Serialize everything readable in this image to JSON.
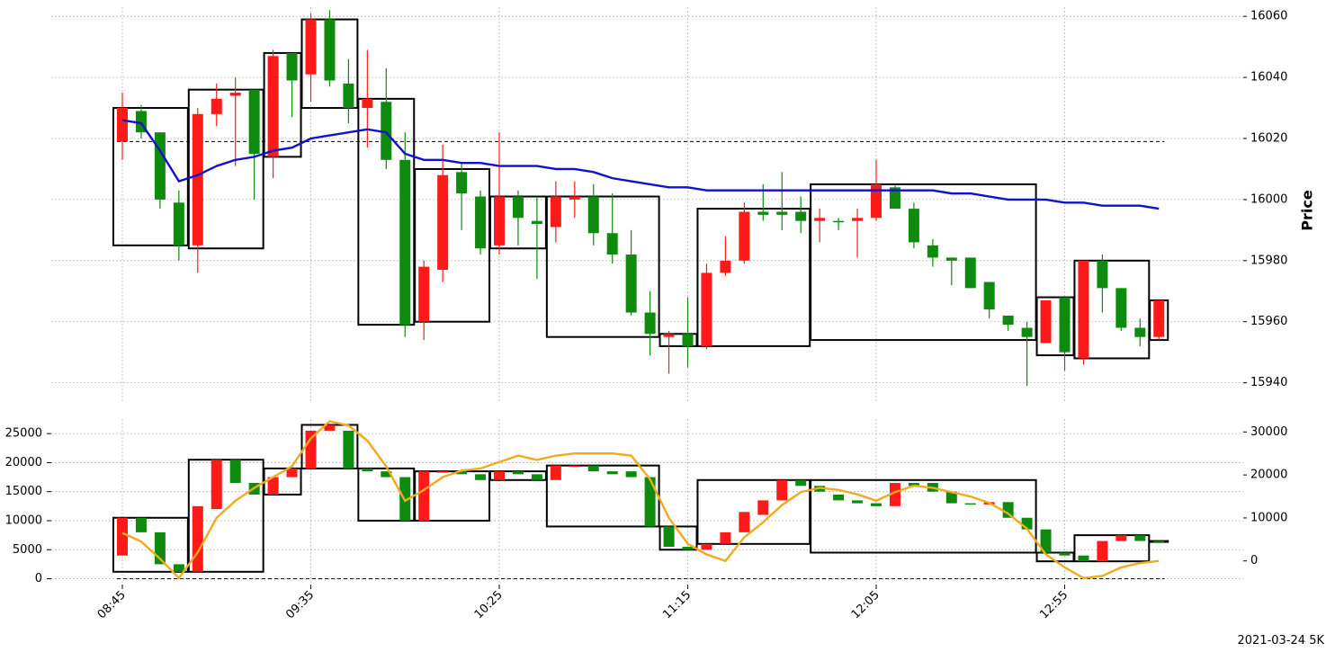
{
  "chart_data": {
    "type": "candlestick",
    "footer": "2021-03-24 5K",
    "price_axis": {
      "label": "Price",
      "ticks": [
        15940,
        15960,
        15980,
        16000,
        16020,
        16040,
        16060
      ],
      "range": [
        15934,
        16063
      ]
    },
    "volume_axis_left": {
      "ticks": [
        0,
        5000,
        10000,
        15000,
        20000,
        25000
      ],
      "range": [
        -1000,
        27500
      ]
    },
    "volume_axis_right": {
      "ticks": [
        0,
        10000,
        20000,
        30000
      ],
      "range": [
        -5500,
        33000
      ]
    },
    "x_ticks": [
      "08:45",
      "09:35",
      "10:25",
      "11:15",
      "12:05",
      "12:55"
    ],
    "x_tick_indices": [
      0,
      10,
      20,
      30,
      40,
      50
    ],
    "colors": {
      "up": "#ff1a1a",
      "down": "#0e8a0e",
      "ma": "#1010d0",
      "vol_line": "#f0aa1e",
      "box": "#000000"
    },
    "price_reference_line": 16019,
    "candles": [
      {
        "o": 16019,
        "h": 16035,
        "l": 16013,
        "c": 16030,
        "dir": "up"
      },
      {
        "o": 16029,
        "h": 16031,
        "l": 16020,
        "c": 16022,
        "dir": "down"
      },
      {
        "o": 16022,
        "h": 16022,
        "l": 15997,
        "c": 16000,
        "dir": "down"
      },
      {
        "o": 15999,
        "h": 16003,
        "l": 15980,
        "c": 15985,
        "dir": "down"
      },
      {
        "o": 15985,
        "h": 16030,
        "l": 15976,
        "c": 16028,
        "dir": "up"
      },
      {
        "o": 16028,
        "h": 16038,
        "l": 16024,
        "c": 16033,
        "dir": "up"
      },
      {
        "o": 16034,
        "h": 16040,
        "l": 16011,
        "c": 16035,
        "dir": "up"
      },
      {
        "o": 16036,
        "h": 16036,
        "l": 16000,
        "c": 16015,
        "dir": "down"
      },
      {
        "o": 16014,
        "h": 16049,
        "l": 16007,
        "c": 16047,
        "dir": "up"
      },
      {
        "o": 16048,
        "h": 16048,
        "l": 16027,
        "c": 16039,
        "dir": "down"
      },
      {
        "o": 16041,
        "h": 16061,
        "l": 16032,
        "c": 16059,
        "dir": "up"
      },
      {
        "o": 16059,
        "h": 16062,
        "l": 16037,
        "c": 16039,
        "dir": "down"
      },
      {
        "o": 16038,
        "h": 16046,
        "l": 16025,
        "c": 16030,
        "dir": "down"
      },
      {
        "o": 16030,
        "h": 16049,
        "l": 16017,
        "c": 16033,
        "dir": "up"
      },
      {
        "o": 16032,
        "h": 16043,
        "l": 16010,
        "c": 16013,
        "dir": "down"
      },
      {
        "o": 16013,
        "h": 16022,
        "l": 15955,
        "c": 15959,
        "dir": "down"
      },
      {
        "o": 15960,
        "h": 15980,
        "l": 15954,
        "c": 15978,
        "dir": "up"
      },
      {
        "o": 15977,
        "h": 16018,
        "l": 15973,
        "c": 16008,
        "dir": "up"
      },
      {
        "o": 16009,
        "h": 16012,
        "l": 15990,
        "c": 16002,
        "dir": "down"
      },
      {
        "o": 16001,
        "h": 16003,
        "l": 15982,
        "c": 15984,
        "dir": "down"
      },
      {
        "o": 15985,
        "h": 16022,
        "l": 15982,
        "c": 16001,
        "dir": "up"
      },
      {
        "o": 16001,
        "h": 16003,
        "l": 15985,
        "c": 15994,
        "dir": "down"
      },
      {
        "o": 15993,
        "h": 16001,
        "l": 15974,
        "c": 15992,
        "dir": "down"
      },
      {
        "o": 15991,
        "h": 16006,
        "l": 15986,
        "c": 16001,
        "dir": "up"
      },
      {
        "o": 16000,
        "h": 16006,
        "l": 15994,
        "c": 16001,
        "dir": "up"
      },
      {
        "o": 16001,
        "h": 16005,
        "l": 15985,
        "c": 15989,
        "dir": "down"
      },
      {
        "o": 15989,
        "h": 16002,
        "l": 15979,
        "c": 15982,
        "dir": "down"
      },
      {
        "o": 15982,
        "h": 15990,
        "l": 15962,
        "c": 15963,
        "dir": "down"
      },
      {
        "o": 15963,
        "h": 15970,
        "l": 15949,
        "c": 15956,
        "dir": "down"
      },
      {
        "o": 15955,
        "h": 15957,
        "l": 15943,
        "c": 15956,
        "dir": "up"
      },
      {
        "o": 15956,
        "h": 15968,
        "l": 15945,
        "c": 15952,
        "dir": "down"
      },
      {
        "o": 15952,
        "h": 15979,
        "l": 15951,
        "c": 15976,
        "dir": "up"
      },
      {
        "o": 15976,
        "h": 15988,
        "l": 15975,
        "c": 15980,
        "dir": "up"
      },
      {
        "o": 15980,
        "h": 15999,
        "l": 15979,
        "c": 15996,
        "dir": "up"
      },
      {
        "o": 15996,
        "h": 16005,
        "l": 15993,
        "c": 15995,
        "dir": "down"
      },
      {
        "o": 15996,
        "h": 16009,
        "l": 15990,
        "c": 15995,
        "dir": "down"
      },
      {
        "o": 15996,
        "h": 16001,
        "l": 15989,
        "c": 15993,
        "dir": "down"
      },
      {
        "o": 15993,
        "h": 15997,
        "l": 15986,
        "c": 15994,
        "dir": "up"
      },
      {
        "o": 15993,
        "h": 15994,
        "l": 15990,
        "c": 15993,
        "dir": "down"
      },
      {
        "o": 15993,
        "h": 15997,
        "l": 15981,
        "c": 15994,
        "dir": "up"
      },
      {
        "o": 15994,
        "h": 16013,
        "l": 15993,
        "c": 16005,
        "dir": "up"
      },
      {
        "o": 16004,
        "h": 16005,
        "l": 15997,
        "c": 15997,
        "dir": "down"
      },
      {
        "o": 15997,
        "h": 15999,
        "l": 15984,
        "c": 15986,
        "dir": "down"
      },
      {
        "o": 15985,
        "h": 15987,
        "l": 15978,
        "c": 15981,
        "dir": "down"
      },
      {
        "o": 15981,
        "h": 15981,
        "l": 15972,
        "c": 15980,
        "dir": "down"
      },
      {
        "o": 15981,
        "h": 15981,
        "l": 15971,
        "c": 15971,
        "dir": "down"
      },
      {
        "o": 15973,
        "h": 15973,
        "l": 15961,
        "c": 15964,
        "dir": "down"
      },
      {
        "o": 15962,
        "h": 15962,
        "l": 15957,
        "c": 15959,
        "dir": "down"
      },
      {
        "o": 15958,
        "h": 15960,
        "l": 15939,
        "c": 15955,
        "dir": "down"
      },
      {
        "o": 15953,
        "h": 15967,
        "l": 15953,
        "c": 15967,
        "dir": "up"
      },
      {
        "o": 15968,
        "h": 15968,
        "l": 15944,
        "c": 15950,
        "dir": "down"
      },
      {
        "o": 15948,
        "h": 15980,
        "l": 15946,
        "c": 15980,
        "dir": "up"
      },
      {
        "o": 15980,
        "h": 15982,
        "l": 15963,
        "c": 15971,
        "dir": "down"
      },
      {
        "o": 15971,
        "h": 15971,
        "l": 15957,
        "c": 15958,
        "dir": "down"
      },
      {
        "o": 15958,
        "h": 15961,
        "l": 15952,
        "c": 15955,
        "dir": "down"
      },
      {
        "o": 15955,
        "h": 15967,
        "l": 15954,
        "c": 15967,
        "dir": "up"
      }
    ],
    "ma_line": [
      16026,
      16025,
      16016,
      16006,
      16008,
      16011,
      16013,
      16014,
      16016,
      16017,
      16020,
      16021,
      16022,
      16023,
      16022,
      16015,
      16013,
      16013,
      16012,
      16012,
      16011,
      16011,
      16011,
      16010,
      16010,
      16009,
      16007,
      16006,
      16005,
      16004,
      16004,
      16003,
      16003,
      16003,
      16003,
      16003,
      16003,
      16003,
      16003,
      16003,
      16003,
      16003,
      16003,
      16003,
      16002,
      16002,
      16001,
      16000,
      16000,
      16000,
      15999,
      15999,
      15998,
      15998,
      15998,
      15997
    ],
    "price_boxes": [
      {
        "i0": 0,
        "i1": 3,
        "top": 16030,
        "bottom": 15985
      },
      {
        "i0": 4,
        "i1": 7,
        "top": 16036,
        "bottom": 15984
      },
      {
        "i0": 8,
        "i1": 9,
        "top": 16048,
        "bottom": 16014
      },
      {
        "i0": 10,
        "i1": 12,
        "top": 16059,
        "bottom": 16030
      },
      {
        "i0": 13,
        "i1": 15,
        "top": 16033,
        "bottom": 15959
      },
      {
        "i0": 16,
        "i1": 19,
        "top": 16010,
        "bottom": 15960
      },
      {
        "i0": 20,
        "i1": 22,
        "top": 16001,
        "bottom": 15984
      },
      {
        "i0": 23,
        "i1": 28,
        "top": 16001,
        "bottom": 15955
      },
      {
        "i0": 29,
        "i1": 30,
        "top": 15956,
        "bottom": 15952
      },
      {
        "i0": 31,
        "i1": 36,
        "top": 15997,
        "bottom": 15952
      },
      {
        "i0": 37,
        "i1": 48,
        "top": 16005,
        "bottom": 15954
      },
      {
        "i0": 49,
        "i1": 50,
        "top": 15968,
        "bottom": 15949
      },
      {
        "i0": 51,
        "i1": 54,
        "top": 15980,
        "bottom": 15948
      },
      {
        "i0": 55,
        "i1": 55,
        "top": 15967,
        "bottom": 15954
      }
    ],
    "volume_candles": [
      {
        "o": 4000,
        "c": 10500,
        "dir": "up"
      },
      {
        "o": 10500,
        "c": 8000,
        "dir": "down"
      },
      {
        "o": 8000,
        "c": 2500,
        "dir": "down"
      },
      {
        "o": 2500,
        "c": 1200,
        "dir": "down"
      },
      {
        "o": 1200,
        "c": 12500,
        "dir": "up"
      },
      {
        "o": 12000,
        "c": 20500,
        "dir": "up"
      },
      {
        "o": 20500,
        "c": 16500,
        "dir": "down"
      },
      {
        "o": 16500,
        "c": 14500,
        "dir": "down"
      },
      {
        "o": 14500,
        "c": 17500,
        "dir": "up"
      },
      {
        "o": 17500,
        "c": 19000,
        "dir": "up"
      },
      {
        "o": 19000,
        "c": 25500,
        "dir": "up"
      },
      {
        "o": 25500,
        "c": 26500,
        "dir": "up"
      },
      {
        "o": 25500,
        "c": 19000,
        "dir": "down"
      },
      {
        "o": 19000,
        "c": 18500,
        "dir": "down"
      },
      {
        "o": 18500,
        "c": 17500,
        "dir": "down"
      },
      {
        "o": 17500,
        "c": 10000,
        "dir": "down"
      },
      {
        "o": 10000,
        "c": 18500,
        "dir": "up"
      },
      {
        "o": 18500,
        "c": 18500,
        "dir": "up"
      },
      {
        "o": 18500,
        "c": 18000,
        "dir": "down"
      },
      {
        "o": 18000,
        "c": 17000,
        "dir": "down"
      },
      {
        "o": 17000,
        "c": 18500,
        "dir": "up"
      },
      {
        "o": 18500,
        "c": 18000,
        "dir": "down"
      },
      {
        "o": 18000,
        "c": 17000,
        "dir": "down"
      },
      {
        "o": 17000,
        "c": 19500,
        "dir": "up"
      },
      {
        "o": 19500,
        "c": 19500,
        "dir": "up"
      },
      {
        "o": 19500,
        "c": 18500,
        "dir": "down"
      },
      {
        "o": 18500,
        "c": 18000,
        "dir": "down"
      },
      {
        "o": 18500,
        "c": 17500,
        "dir": "down"
      },
      {
        "o": 17500,
        "c": 9000,
        "dir": "down"
      },
      {
        "o": 9000,
        "c": 5500,
        "dir": "down"
      },
      {
        "o": 5500,
        "c": 5000,
        "dir": "down"
      },
      {
        "o": 5000,
        "c": 6000,
        "dir": "up"
      },
      {
        "o": 6000,
        "c": 8000,
        "dir": "up"
      },
      {
        "o": 8000,
        "c": 11500,
        "dir": "up"
      },
      {
        "o": 11000,
        "c": 13500,
        "dir": "up"
      },
      {
        "o": 13500,
        "c": 17000,
        "dir": "up"
      },
      {
        "o": 17000,
        "c": 16000,
        "dir": "down"
      },
      {
        "o": 16000,
        "c": 15000,
        "dir": "down"
      },
      {
        "o": 14500,
        "c": 13500,
        "dir": "down"
      },
      {
        "o": 13500,
        "c": 13000,
        "dir": "down"
      },
      {
        "o": 13000,
        "c": 12500,
        "dir": "down"
      },
      {
        "o": 12500,
        "c": 16500,
        "dir": "up"
      },
      {
        "o": 16500,
        "c": 16000,
        "dir": "down"
      },
      {
        "o": 16500,
        "c": 15000,
        "dir": "down"
      },
      {
        "o": 15000,
        "c": 13000,
        "dir": "down"
      },
      {
        "o": 13000,
        "c": 12800,
        "dir": "down"
      },
      {
        "o": 12800,
        "c": 13200,
        "dir": "up"
      },
      {
        "o": 13200,
        "c": 10500,
        "dir": "down"
      },
      {
        "o": 10500,
        "c": 8500,
        "dir": "down"
      },
      {
        "o": 8500,
        "c": 4500,
        "dir": "down"
      },
      {
        "o": 4500,
        "c": 4000,
        "dir": "down"
      },
      {
        "o": 4000,
        "c": 3000,
        "dir": "down"
      },
      {
        "o": 3000,
        "c": 6500,
        "dir": "up"
      },
      {
        "o": 6500,
        "c": 7500,
        "dir": "up"
      },
      {
        "o": 7500,
        "c": 6500,
        "dir": "down"
      },
      {
        "o": 6500,
        "c": 6500,
        "dir": "down"
      }
    ],
    "volume_line": [
      6500,
      4500,
      500,
      -4000,
      2000,
      10000,
      14000,
      17000,
      19500,
      22000,
      28500,
      32500,
      31500,
      28000,
      22000,
      14000,
      16500,
      19500,
      21000,
      21500,
      23000,
      24500,
      23500,
      24500,
      25000,
      25000,
      25000,
      24500,
      19000,
      10000,
      4000,
      1500,
      0,
      5500,
      9000,
      13000,
      16000,
      17000,
      16500,
      15500,
      14000,
      16000,
      17500,
      17000,
      16000,
      15000,
      13500,
      11000,
      7500,
      1500,
      -1500,
      -4000,
      -3500,
      -1500,
      -500,
      0
    ],
    "volume_boxes": [
      {
        "i0": 0,
        "i1": 3,
        "top": 10500,
        "bottom": 1200
      },
      {
        "i0": 4,
        "i1": 7,
        "top": 20500,
        "bottom": 1200
      },
      {
        "i0": 8,
        "i1": 9,
        "top": 19000,
        "bottom": 14500
      },
      {
        "i0": 10,
        "i1": 12,
        "top": 26500,
        "bottom": 19000
      },
      {
        "i0": 13,
        "i1": 15,
        "top": 19000,
        "bottom": 10000
      },
      {
        "i0": 16,
        "i1": 19,
        "top": 18500,
        "bottom": 10000
      },
      {
        "i0": 20,
        "i1": 22,
        "top": 18500,
        "bottom": 17000
      },
      {
        "i0": 23,
        "i1": 28,
        "top": 19500,
        "bottom": 9000
      },
      {
        "i0": 29,
        "i1": 30,
        "top": 9000,
        "bottom": 5000
      },
      {
        "i0": 31,
        "i1": 36,
        "top": 17000,
        "bottom": 6000
      },
      {
        "i0": 37,
        "i1": 48,
        "top": 17000,
        "bottom": 4500
      },
      {
        "i0": 49,
        "i1": 50,
        "top": 4500,
        "bottom": 3000
      },
      {
        "i0": 51,
        "i1": 54,
        "top": 7500,
        "bottom": 3000
      },
      {
        "i0": 55,
        "i1": 55,
        "top": 6500,
        "bottom": 6500
      }
    ],
    "volume_reference_line": 0
  }
}
